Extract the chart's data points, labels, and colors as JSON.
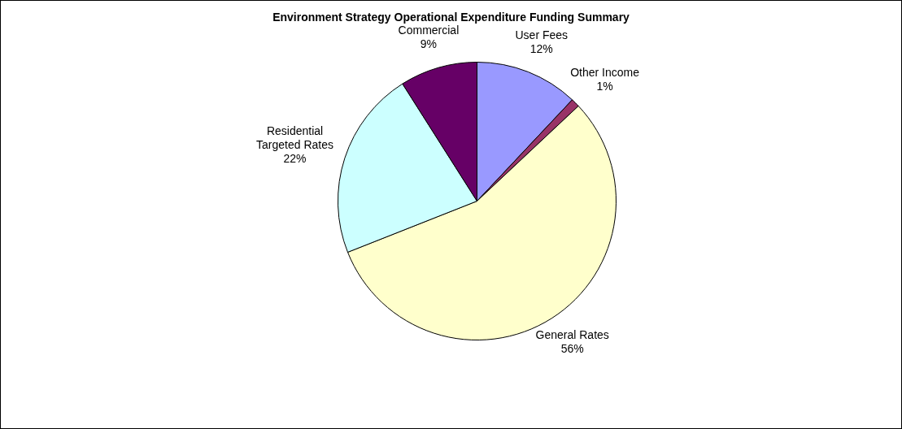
{
  "chart_data": {
    "type": "pie",
    "title": "Environment Strategy Operational Expenditure Funding Summary",
    "categories": [
      "User Fees",
      "Other Income",
      "General Rates",
      "Residential Targeted Rates",
      "Commercial"
    ],
    "values": [
      12,
      1,
      56,
      22,
      9
    ],
    "colors": [
      "#9999ff",
      "#993366",
      "#ffffcc",
      "#ccffff",
      "#660066"
    ],
    "value_labels": [
      "12%",
      "1%",
      "56%",
      "22%",
      "9%"
    ],
    "legend": false
  }
}
